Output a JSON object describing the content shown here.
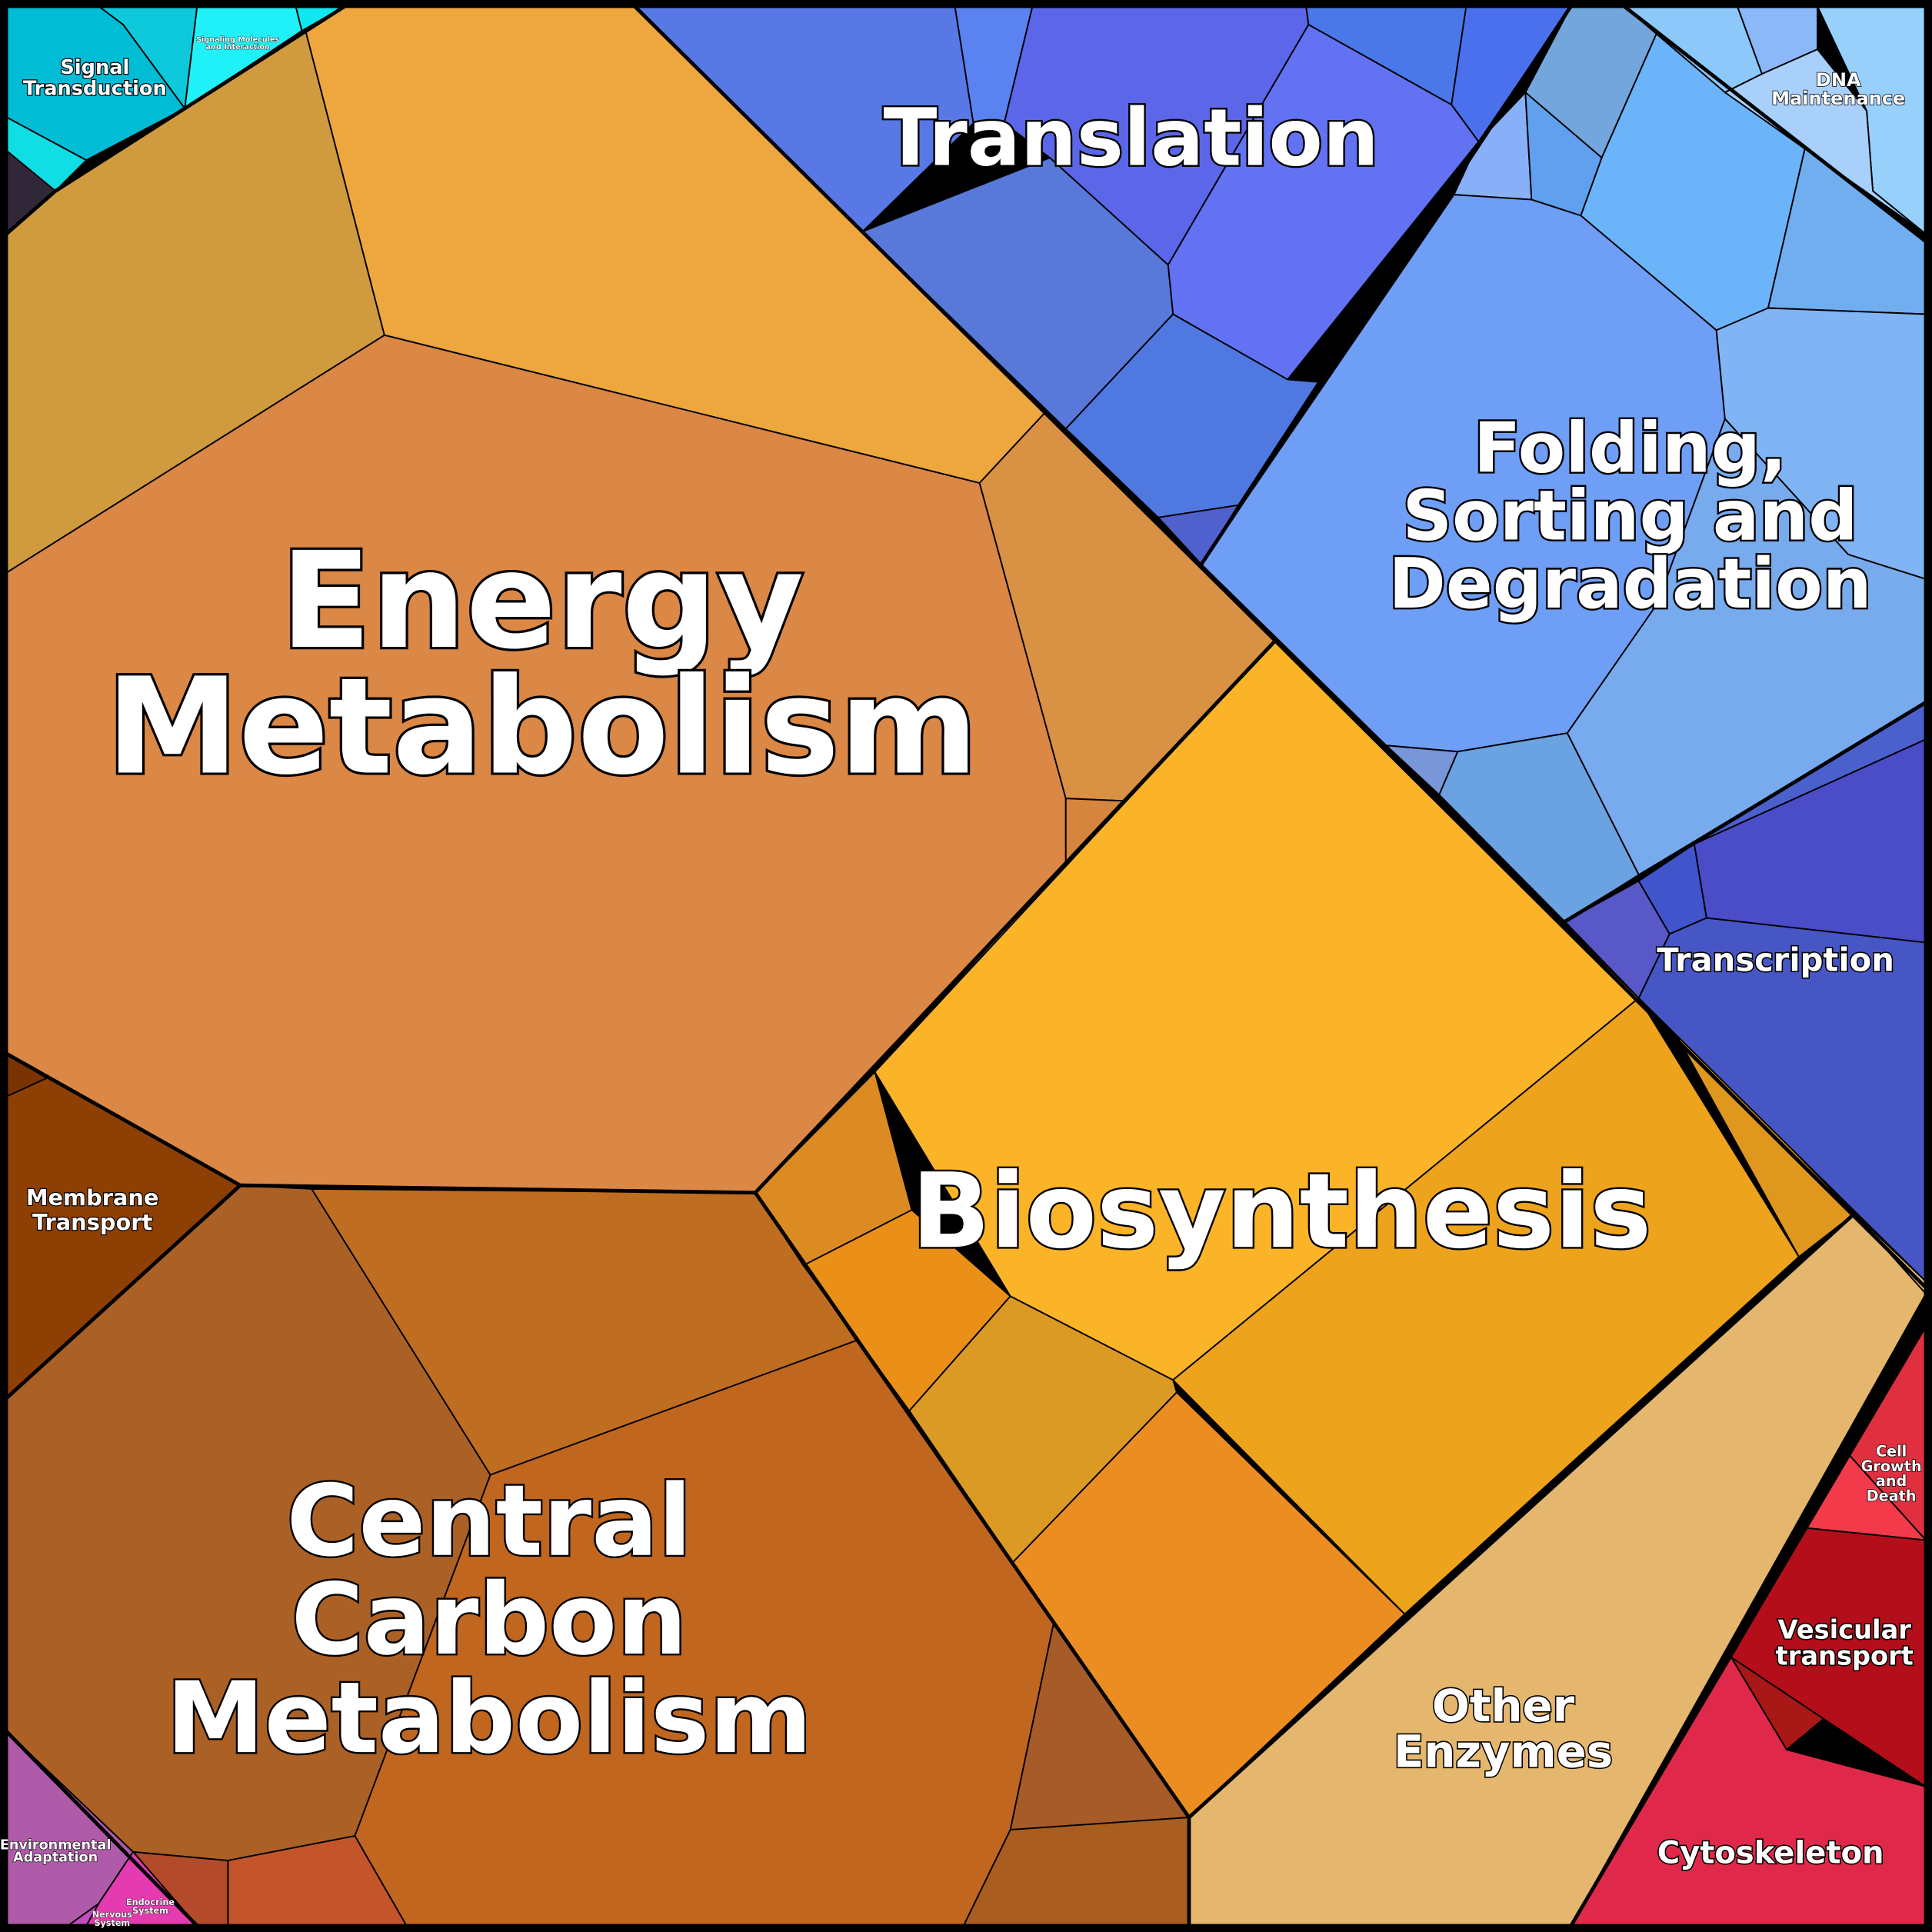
{
  "labels": [
    {
      "lines": [
        "Energy",
        "Metabolism"
      ]
    },
    {
      "lines": [
        "Biosynthesis"
      ]
    },
    {
      "lines": [
        "Central",
        "Carbon",
        "Metabolism"
      ]
    },
    {
      "lines": [
        "Translation"
      ]
    },
    {
      "lines": [
        "Folding,",
        "Sorting and",
        "Degradation"
      ]
    },
    {
      "lines": [
        "Transcription"
      ]
    },
    {
      "lines": [
        "Other",
        "Enzymes"
      ]
    },
    {
      "lines": [
        "Cytoskeleton"
      ]
    },
    {
      "lines": [
        "Vesicular",
        "transport"
      ]
    },
    {
      "lines": [
        "Cell",
        "Growth",
        "and",
        "Death"
      ]
    },
    {
      "lines": [
        "Membrane",
        "Transport"
      ]
    },
    {
      "lines": [
        "Signal",
        "Transduction"
      ]
    },
    {
      "lines": [
        "Signaling Molecules",
        "and Interaction"
      ]
    },
    {
      "lines": [
        "DNA",
        "Maintenance"
      ]
    },
    {
      "lines": [
        "Environmental",
        "Adaptation"
      ]
    },
    {
      "lines": [
        "Nervous",
        "System"
      ]
    },
    {
      "lines": [
        "Endocrine",
        "System"
      ]
    }
  ]
}
